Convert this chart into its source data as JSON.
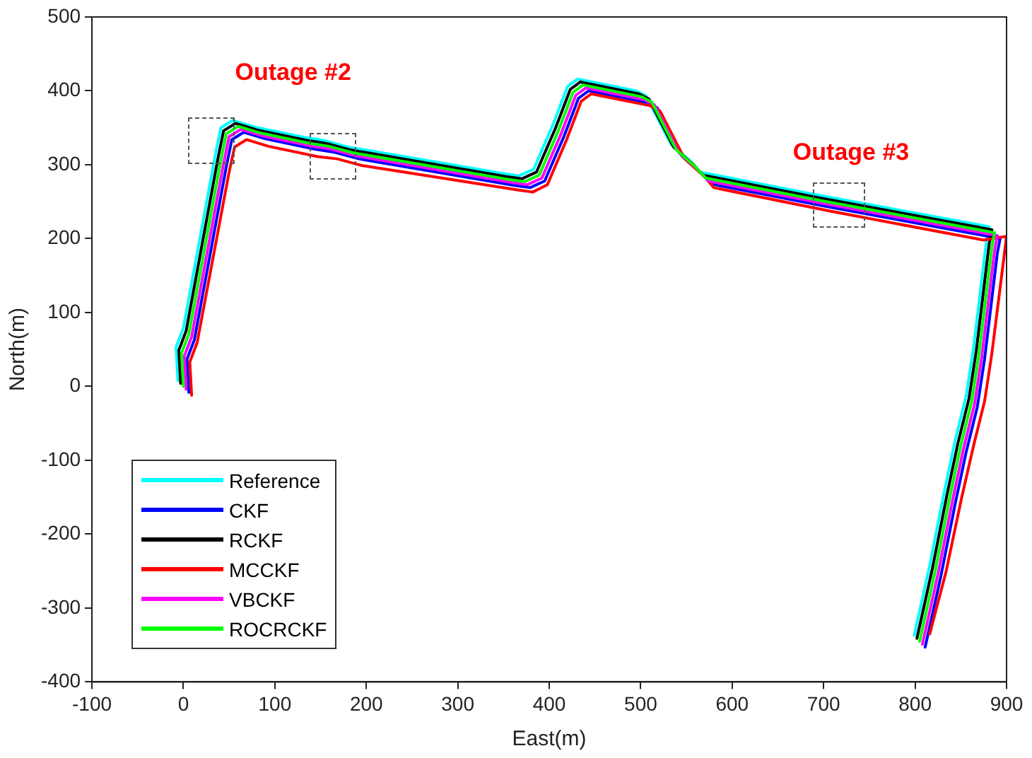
{
  "chart_data": {
    "type": "line",
    "xlabel": "East(m)",
    "ylabel": "North(m)",
    "xlim": [
      -100,
      900
    ],
    "xticks": [
      -100,
      0,
      100,
      200,
      300,
      400,
      500,
      600,
      700,
      800,
      900
    ],
    "ylim": [
      -400,
      500
    ],
    "yticks": [
      -400,
      -300,
      -200,
      -100,
      0,
      100,
      200,
      300,
      400,
      500
    ],
    "grid": false,
    "legend": "bottom left",
    "marker": "none",
    "line_style": "solid",
    "annotations": [
      "Outage #2",
      "Outage #3"
    ],
    "series": [
      {
        "name": "Reference",
        "color": "#00ffff",
        "x": [
          -6,
          -8,
          0,
          35,
          41,
          54,
          78,
          132,
          153,
          180,
          350,
          367,
          383,
          404,
          420,
          431,
          495,
          506,
          533,
          554,
          565,
          693,
          864,
          881,
          878,
          864,
          856,
          844,
          832,
          816,
          799
        ],
        "values": [
          8,
          53,
          79,
          314,
          350,
          360,
          351,
          337,
          333,
          324,
          288,
          285,
          294,
          354,
          406,
          416,
          400,
          393,
          328,
          305,
          290,
          259,
          220,
          216,
          197,
          53,
          -12,
          -72,
          -142,
          -242,
          -337
        ]
      },
      {
        "name": "CKF",
        "color": "#0000ff",
        "x": [
          6,
          4,
          12,
          47,
          53,
          66,
          90,
          144,
          165,
          192,
          362,
          379,
          395,
          416,
          432,
          443,
          507,
          518,
          545,
          566,
          577,
          705,
          876,
          893,
          890,
          876,
          868,
          856,
          844,
          828,
          811
        ],
        "values": [
          -8,
          37,
          63,
          298,
          334,
          344,
          335,
          321,
          317,
          308,
          272,
          269,
          278,
          338,
          390,
          400,
          384,
          377,
          312,
          289,
          274,
          243,
          204,
          200,
          181,
          37,
          -28,
          -88,
          -158,
          -258,
          -353
        ]
      },
      {
        "name": "RCKF",
        "color": "#000000",
        "x": [
          -3,
          -5,
          3,
          38,
          44,
          57,
          81,
          135,
          156,
          183,
          353,
          370,
          386,
          407,
          423,
          434,
          498,
          509,
          536,
          557,
          568,
          696,
          867,
          884,
          881,
          867,
          859,
          847,
          835,
          819,
          802
        ],
        "values": [
          4,
          49,
          75,
          310,
          346,
          356,
          347,
          333,
          329,
          320,
          284,
          281,
          290,
          350,
          402,
          412,
          396,
          389,
          324,
          301,
          286,
          255,
          216,
          212,
          193,
          49,
          -16,
          -76,
          -146,
          -246,
          -341
        ]
      },
      {
        "name": "MCCKF",
        "color": "#ff0000",
        "x": [
          9,
          7,
          15,
          50,
          56,
          69,
          93,
          147,
          168,
          195,
          365,
          382,
          398,
          419,
          435,
          446,
          510,
          521,
          548,
          569,
          580,
          708,
          875,
          900,
          884,
          876,
          864,
          851,
          834,
          816
        ],
        "values": [
          -12,
          33,
          59,
          290,
          324,
          334,
          325,
          311,
          308,
          299,
          266,
          263,
          273,
          334,
          386,
          396,
          380,
          373,
          308,
          285,
          269,
          237,
          198,
          203,
          45,
          -20,
          -80,
          -150,
          -250,
          -335
        ]
      },
      {
        "name": "VBCKF",
        "color": "#ff00ff",
        "x": [
          3,
          1,
          9,
          44,
          50,
          63,
          87,
          141,
          162,
          189,
          359,
          376,
          392,
          413,
          429,
          440,
          504,
          515,
          542,
          563,
          574,
          702,
          873,
          890,
          887,
          873,
          865,
          853,
          841,
          825,
          808
        ],
        "values": [
          -4,
          41,
          67,
          302,
          338,
          348,
          339,
          325,
          321,
          312,
          276,
          273,
          282,
          342,
          394,
          404,
          388,
          381,
          316,
          293,
          278,
          247,
          208,
          204,
          185,
          41,
          -24,
          -84,
          -154,
          -254,
          -349
        ]
      },
      {
        "name": "ROCRCKF",
        "color": "#00ff00",
        "x": [
          0,
          -2,
          6,
          41,
          47,
          60,
          84,
          138,
          159,
          186,
          356,
          373,
          389,
          410,
          426,
          437,
          501,
          512,
          539,
          560,
          571,
          699,
          870,
          887,
          884,
          870,
          862,
          850,
          838,
          822,
          805
        ],
        "values": [
          0,
          45,
          71,
          306,
          342,
          352,
          343,
          329,
          325,
          316,
          280,
          277,
          286,
          346,
          398,
          408,
          392,
          385,
          320,
          297,
          282,
          251,
          212,
          208,
          189,
          45,
          -20,
          -80,
          -150,
          -250,
          -345
        ]
      }
    ]
  }
}
